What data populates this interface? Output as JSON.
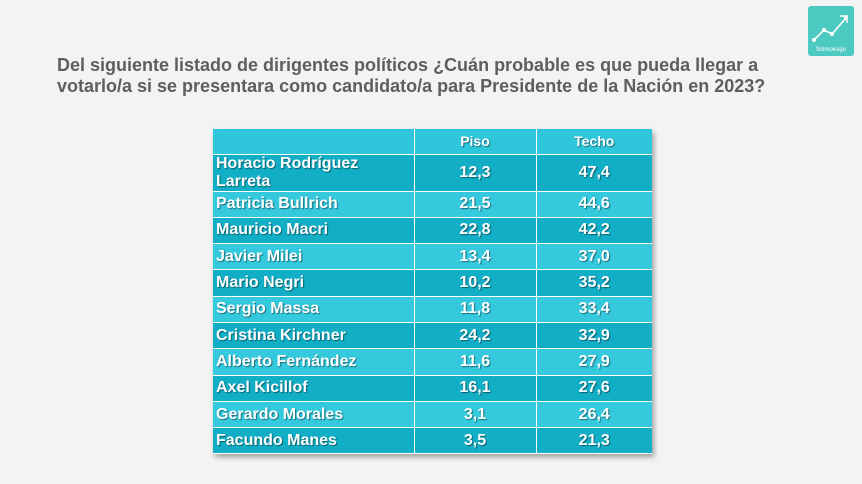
{
  "question": "Del siguiente listado de dirigentes políticos ¿Cuán probable es que pueda llegar a votarlo/a si se presentara como candidato/a para Presidente de la Nación en 2023?",
  "logo": {
    "label": "Solmoirago",
    "icon": "rising-chart-icon"
  },
  "colors": {
    "header": "#2fc6dc",
    "row_dark": "#12aec5",
    "row_light": "#34c9dd",
    "text": "#ffffff"
  },
  "chart_data": {
    "type": "table",
    "columns": [
      "",
      "Piso",
      "Techo"
    ],
    "rows": [
      [
        "Horacio Rodríguez Larreta",
        "12,3",
        "47,4"
      ],
      [
        "Patricia Bullrich",
        "21,5",
        "44,6"
      ],
      [
        "Mauricio Macri",
        "22,8",
        "42,2"
      ],
      [
        "Javier Milei",
        "13,4",
        "37,0"
      ],
      [
        "Mario Negri",
        "10,2",
        "35,2"
      ],
      [
        "Sergio Massa",
        "11,8",
        "33,4"
      ],
      [
        "Cristina Kirchner",
        "24,2",
        "32,9"
      ],
      [
        "Alberto Fernández",
        "11,6",
        "27,9"
      ],
      [
        "Axel Kicillof",
        "16,1",
        "27,6"
      ],
      [
        "Gerardo Morales",
        "3,1",
        "26,4"
      ],
      [
        "Facundo Manes",
        "3,5",
        "21,3"
      ]
    ]
  }
}
